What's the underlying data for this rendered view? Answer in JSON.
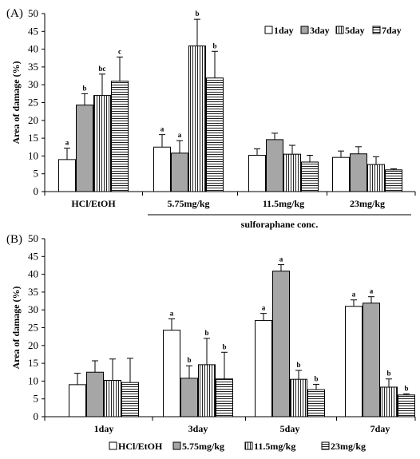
{
  "chart_data": [
    {
      "type": "bar",
      "panel_label": "(A)",
      "ylabel": "Area of damage (%)",
      "ylim": [
        0,
        50
      ],
      "yticks": [
        "0",
        "5",
        "10",
        "15",
        "20",
        "25",
        "30",
        "35",
        "40",
        "45",
        "50"
      ],
      "categories": [
        "HCl/EtOH",
        "5.75mg/kg",
        "11.5mg/kg",
        "23mg/kg"
      ],
      "group_label": "sulforaphane conc.",
      "legend_position": "top-right",
      "series": [
        {
          "name": "1day",
          "values": [
            9.0,
            12.5,
            10.2,
            9.6
          ],
          "errors": [
            3.2,
            3.5,
            1.8,
            1.8
          ],
          "letters": [
            "a",
            "a",
            "",
            ""
          ]
        },
        {
          "name": "3day",
          "values": [
            24.3,
            10.8,
            14.6,
            10.6
          ],
          "errors": [
            3.2,
            3.5,
            1.8,
            2.0
          ],
          "letters": [
            "b",
            "a",
            "",
            ""
          ]
        },
        {
          "name": "5day",
          "values": [
            27.0,
            40.9,
            10.5,
            7.6
          ],
          "errors": [
            6.0,
            7.5,
            2.5,
            2.2
          ],
          "letters": [
            "bc",
            "b",
            "",
            ""
          ]
        },
        {
          "name": "7day",
          "values": [
            31.0,
            31.9,
            8.3,
            6.1
          ],
          "errors": [
            6.8,
            7.5,
            1.9,
            0.3
          ],
          "letters": [
            "c",
            "b",
            "",
            ""
          ]
        }
      ]
    },
    {
      "type": "bar",
      "panel_label": "(B)",
      "ylabel": "Area of damage (%)",
      "ylim": [
        0,
        50
      ],
      "yticks": [
        "0",
        "5",
        "10",
        "15",
        "20",
        "25",
        "30",
        "35",
        "40",
        "45",
        "50"
      ],
      "categories": [
        "1day",
        "3day",
        "5day",
        "7day"
      ],
      "legend_position": "bottom",
      "series": [
        {
          "name": "HCl/EtOH",
          "values": [
            9.0,
            24.3,
            27.0,
            31.0
          ],
          "errors": [
            3.2,
            3.2,
            2.0,
            1.8
          ],
          "letters": [
            "",
            "a",
            "a",
            "a"
          ]
        },
        {
          "name": "5.75mg/kg",
          "values": [
            12.5,
            10.8,
            40.9,
            31.9
          ],
          "errors": [
            3.2,
            3.5,
            1.8,
            1.8
          ],
          "letters": [
            "",
            "b",
            "a",
            "a"
          ]
        },
        {
          "name": "11.5mg/kg",
          "values": [
            10.2,
            14.6,
            10.5,
            8.3
          ],
          "errors": [
            6.0,
            7.4,
            2.5,
            2.3
          ],
          "letters": [
            "",
            "b",
            "b",
            "b"
          ]
        },
        {
          "name": "23mg/kg",
          "values": [
            9.6,
            10.6,
            7.6,
            6.1
          ],
          "errors": [
            6.8,
            7.5,
            1.5,
            0.3
          ],
          "letters": [
            "",
            "b",
            "b",
            "b"
          ]
        }
      ]
    }
  ]
}
